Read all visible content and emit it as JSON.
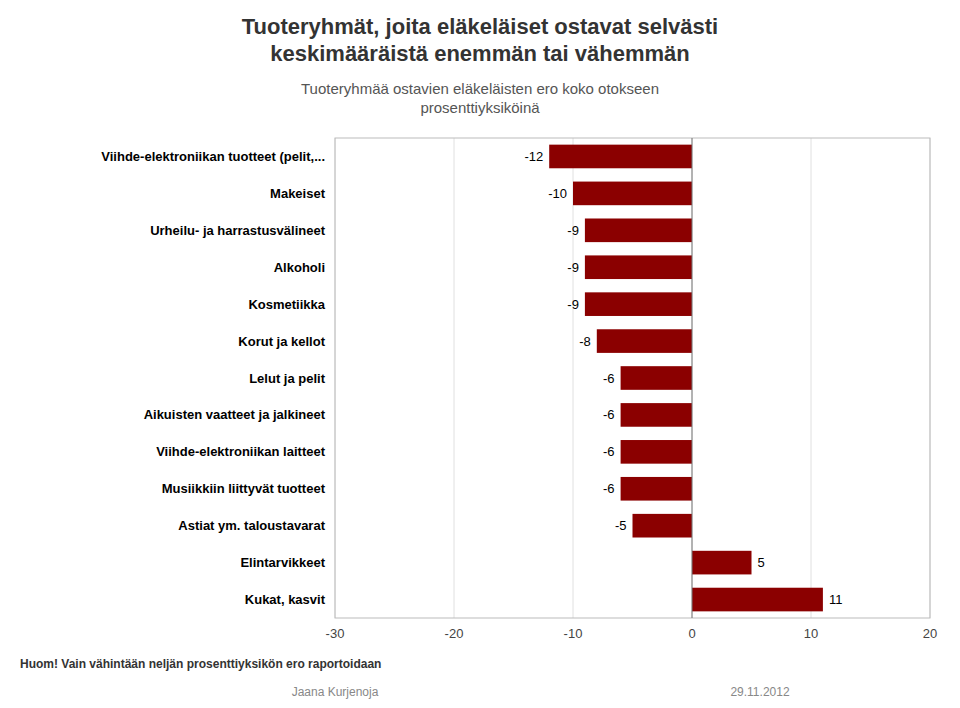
{
  "chart_data": {
    "type": "bar",
    "orientation": "horizontal",
    "title": "Tuoteryhmät, joita eläkeläiset ostavat selvästi\nkeskimääräistä enemmän tai vähemmän",
    "subtitle": "Tuoteryhmää ostavien eläkeläisten ero koko otokseen\nprosenttiyksiköinä",
    "categories": [
      "Viihde-elektroniikan tuotteet (pelit,...",
      "Makeiset",
      "Urheilu- ja harrastusvälineet",
      "Alkoholi",
      "Kosmetiikka",
      "Korut ja kellot",
      "Lelut ja pelit",
      "Aikuisten vaatteet ja jalkineet",
      "Viihde-elektroniikan laitteet",
      "Musiikkiin liittyvät tuotteet",
      "Astiat ym. taloustavarat",
      "Elintarvikkeet",
      "Kukat, kasvit"
    ],
    "values": [
      -12,
      -10,
      -9,
      -9,
      -9,
      -8,
      -6,
      -6,
      -6,
      -6,
      -5,
      5,
      11
    ],
    "color": "#8B0000",
    "xlim": [
      -30,
      20
    ],
    "xticks": [
      -30,
      -20,
      -10,
      0,
      10,
      20
    ],
    "grid": true,
    "data_labels": true,
    "annotations": [
      "Huom! Vain vähintään neljän prosenttiyksikön ero raportoidaan",
      "Jaana Kurjenoja",
      "29.11.2012"
    ]
  }
}
